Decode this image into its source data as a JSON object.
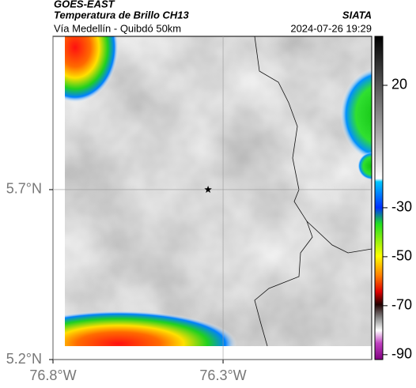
{
  "header": {
    "source": "GOES-EAST",
    "product": "Temperatura de Brillo CH13",
    "agency": "SIATA",
    "region": "Vía Medellín - Quibdó 50km",
    "timestamp": "2024-07-26 19:29"
  },
  "map": {
    "xlim": [
      -76.8,
      -75.863
    ],
    "ylim": [
      5.2,
      6.151
    ],
    "xticks": [
      {
        "value": -76.8,
        "label": "76.8°W"
      },
      {
        "value": -76.3,
        "label": "76.3°W"
      }
    ],
    "yticks": [
      {
        "value": 5.2,
        "label": "5.2°N"
      },
      {
        "value": 5.7,
        "label": "5.7°N"
      }
    ],
    "marker": {
      "lon": -76.344,
      "lat": 5.7
    }
  },
  "colorbar": {
    "lim": [
      -92,
      40
    ],
    "ticks": [
      20,
      -30,
      -50,
      -70,
      -90
    ]
  }
}
